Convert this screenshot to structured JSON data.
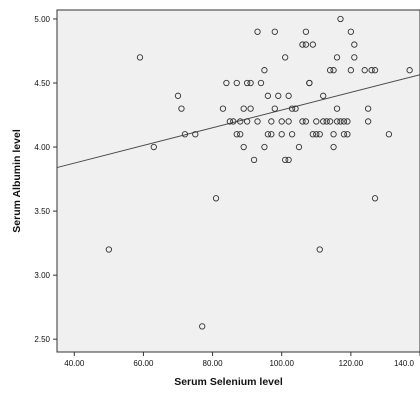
{
  "chart_data": {
    "type": "scatter",
    "title": "",
    "xlabel": "Serum Selenium level",
    "ylabel": "Serum Albumin level",
    "xlim": [
      35,
      140
    ],
    "ylim": [
      2.4,
      5.07
    ],
    "x_ticks": [
      40,
      60,
      80,
      100,
      120,
      140
    ],
    "x_tick_labels": [
      "40.00",
      "60.00",
      "80.00",
      "100.00",
      "120.00",
      "140.0"
    ],
    "y_ticks": [
      2.5,
      3.0,
      3.5,
      4.0,
      4.5,
      5.0
    ],
    "y_tick_labels": [
      "2.50",
      "3.00",
      "3.50",
      "4.00",
      "4.50",
      "5.00"
    ],
    "grid": false,
    "legend": "none",
    "colors": {
      "plot_background": "#f0f0f0",
      "marker_stroke": "#333333",
      "fit_line": "#4a4a4a",
      "axis": "#333333"
    },
    "fit_line": {
      "x": [
        35,
        140
      ],
      "y": [
        3.84,
        4.565
      ]
    },
    "points": [
      {
        "x": 50,
        "y": 3.2
      },
      {
        "x": 59,
        "y": 4.7
      },
      {
        "x": 63,
        "y": 4.0
      },
      {
        "x": 70,
        "y": 4.4
      },
      {
        "x": 71,
        "y": 4.3
      },
      {
        "x": 72,
        "y": 4.1
      },
      {
        "x": 75,
        "y": 4.1
      },
      {
        "x": 77,
        "y": 2.6
      },
      {
        "x": 81,
        "y": 3.6
      },
      {
        "x": 83,
        "y": 4.3
      },
      {
        "x": 84,
        "y": 4.5
      },
      {
        "x": 85,
        "y": 4.2
      },
      {
        "x": 86,
        "y": 4.2
      },
      {
        "x": 87,
        "y": 4.1
      },
      {
        "x": 87,
        "y": 4.5
      },
      {
        "x": 88,
        "y": 4.2
      },
      {
        "x": 88,
        "y": 4.1
      },
      {
        "x": 89,
        "y": 4.0
      },
      {
        "x": 89,
        "y": 4.3
      },
      {
        "x": 90,
        "y": 4.2
      },
      {
        "x": 90,
        "y": 4.5
      },
      {
        "x": 91,
        "y": 4.3
      },
      {
        "x": 91,
        "y": 4.5
      },
      {
        "x": 92,
        "y": 3.9
      },
      {
        "x": 93,
        "y": 4.2
      },
      {
        "x": 93,
        "y": 4.9
      },
      {
        "x": 94,
        "y": 4.5
      },
      {
        "x": 95,
        "y": 4.6
      },
      {
        "x": 95,
        "y": 4.0
      },
      {
        "x": 96,
        "y": 4.1
      },
      {
        "x": 96,
        "y": 4.4
      },
      {
        "x": 97,
        "y": 4.2
      },
      {
        "x": 97,
        "y": 4.1
      },
      {
        "x": 98,
        "y": 4.9
      },
      {
        "x": 98,
        "y": 4.3
      },
      {
        "x": 99,
        "y": 4.4
      },
      {
        "x": 100,
        "y": 4.1
      },
      {
        "x": 100,
        "y": 4.2
      },
      {
        "x": 101,
        "y": 3.9
      },
      {
        "x": 101,
        "y": 4.7
      },
      {
        "x": 102,
        "y": 4.4
      },
      {
        "x": 102,
        "y": 4.2
      },
      {
        "x": 102,
        "y": 3.9
      },
      {
        "x": 103,
        "y": 4.1
      },
      {
        "x": 103,
        "y": 4.3
      },
      {
        "x": 104,
        "y": 4.3
      },
      {
        "x": 105,
        "y": 4.0
      },
      {
        "x": 106,
        "y": 4.8
      },
      {
        "x": 106,
        "y": 4.2
      },
      {
        "x": 107,
        "y": 4.9
      },
      {
        "x": 107,
        "y": 4.8
      },
      {
        "x": 107,
        "y": 4.2
      },
      {
        "x": 108,
        "y": 4.5
      },
      {
        "x": 108,
        "y": 4.5
      },
      {
        "x": 109,
        "y": 4.8
      },
      {
        "x": 109,
        "y": 4.1
      },
      {
        "x": 110,
        "y": 4.2
      },
      {
        "x": 110,
        "y": 4.1
      },
      {
        "x": 111,
        "y": 4.1
      },
      {
        "x": 111,
        "y": 3.2
      },
      {
        "x": 112,
        "y": 4.4
      },
      {
        "x": 112,
        "y": 4.2
      },
      {
        "x": 113,
        "y": 4.2
      },
      {
        "x": 114,
        "y": 4.6
      },
      {
        "x": 114,
        "y": 4.2
      },
      {
        "x": 115,
        "y": 4.6
      },
      {
        "x": 115,
        "y": 4.0
      },
      {
        "x": 115,
        "y": 4.1
      },
      {
        "x": 116,
        "y": 4.7
      },
      {
        "x": 116,
        "y": 4.2
      },
      {
        "x": 116,
        "y": 4.3
      },
      {
        "x": 117,
        "y": 4.2
      },
      {
        "x": 117,
        "y": 5.0
      },
      {
        "x": 118,
        "y": 4.2
      },
      {
        "x": 118,
        "y": 4.1
      },
      {
        "x": 119,
        "y": 4.2
      },
      {
        "x": 119,
        "y": 4.1
      },
      {
        "x": 120,
        "y": 4.6
      },
      {
        "x": 120,
        "y": 4.9
      },
      {
        "x": 121,
        "y": 4.8
      },
      {
        "x": 121,
        "y": 4.7
      },
      {
        "x": 124,
        "y": 4.6
      },
      {
        "x": 125,
        "y": 4.2
      },
      {
        "x": 125,
        "y": 4.3
      },
      {
        "x": 126,
        "y": 4.6
      },
      {
        "x": 127,
        "y": 4.6
      },
      {
        "x": 127,
        "y": 3.6
      },
      {
        "x": 131,
        "y": 4.1
      },
      {
        "x": 137,
        "y": 4.6
      }
    ]
  }
}
